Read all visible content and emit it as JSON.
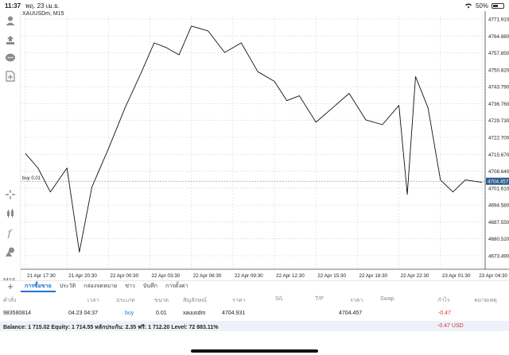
{
  "status_bar": {
    "time": "11:37",
    "date": "พฤ. 23 เม.ย.",
    "wifi_icon": "wifi-icon",
    "battery_text": "50%"
  },
  "chart": {
    "symbol_label": "XAUUSDm, M15",
    "order_line_label": "buy 0.01",
    "current_price": "4704.457",
    "price_ticks": [
      "4771.910",
      "4764.880",
      "4757.850",
      "4750.820",
      "4743.790",
      "4736.760",
      "4729.730",
      "4722.700",
      "4715.670",
      "4708.640",
      "4701.610",
      "4694.580",
      "4687.550",
      "4680.520",
      "4673.490"
    ],
    "time_ticks": [
      "21 Apr 17:30",
      "21 Apr 20:30",
      "22 Apr 00:30",
      "22 Apr 03:30",
      "22 Apr 06:30",
      "22 Apr 09:30",
      "22 Apr 12:30",
      "22 Apr 15:30",
      "22 Apr 18:30",
      "22 Apr 22:30",
      "23 Apr 01:30",
      "23 Apr 04:30"
    ]
  },
  "chart_data": {
    "type": "line",
    "title": "XAUUSDm, M15",
    "xlabel": "",
    "ylabel": "",
    "ylim": [
      4670.0,
      4774.0
    ],
    "grid": true,
    "x_ticks": [
      "21 Apr 17:30",
      "21 Apr 20:30",
      "22 Apr 00:30",
      "22 Apr 03:30",
      "22 Apr 06:30",
      "22 Apr 09:30",
      "22 Apr 12:30",
      "22 Apr 15:30",
      "22 Apr 18:30",
      "22 Apr 22:30",
      "23 Apr 01:30",
      "23 Apr 04:30"
    ],
    "series": [
      {
        "name": "XAUUSDm",
        "x": [
          0,
          0.3,
          0.6,
          1.0,
          1.3,
          1.6,
          2.0,
          2.4,
          2.8,
          3.1,
          3.4,
          3.7,
          4.0,
          4.4,
          4.8,
          5.2,
          5.6,
          6.0,
          6.3,
          6.6,
          7.0,
          7.4,
          7.8,
          8.2,
          8.6,
          9.0,
          9.2,
          9.4,
          9.7,
          10.0,
          10.3,
          10.6,
          11.0
        ],
        "values": [
          4716,
          4710,
          4700,
          4710,
          4675,
          4702,
          4718,
          4735,
          4750,
          4762,
          4760,
          4757,
          4769,
          4767,
          4758,
          4762,
          4750,
          4746,
          4738,
          4740,
          4729,
          4735,
          4741,
          4730,
          4728,
          4736,
          4699,
          4748,
          4735,
          4705,
          4700,
          4705,
          4704
        ]
      }
    ]
  },
  "tabs": [
    "การซื้อขาย",
    "ประวัติ",
    "กล่องจดหมาย",
    "ข่าว",
    "บันทึก",
    "การตั้งค่า"
  ],
  "trade_table": {
    "headers": [
      "คำสั่ง",
      "เวลา",
      "ประเภท",
      "ขนาด",
      "สัญลักษณ์",
      "ราคา",
      "S/L",
      "T/P",
      "ราคา",
      "Swap",
      "กำไร",
      "หมายเหตุ"
    ],
    "row": {
      "order": "983580814",
      "time": "04.23 04:37",
      "type": "buy",
      "size": "0.01",
      "symbol": "xauusdm",
      "open_price": "4704.931",
      "sl": "",
      "tp": "",
      "current_price": "4704.457",
      "swap": "",
      "profit": "-0.47",
      "comment": ""
    }
  },
  "balance_bar": {
    "summary": "Balance: 1 715.02 Equity: 1 714.55 หลักประกัน: 2.35 ฟรี: 1 712.20 Level: 72 883.11%",
    "profit": "-0.47",
    "currency": "USD"
  },
  "colors": {
    "accent": "#1c74d4",
    "negative": "#d9302f",
    "chart_line": "#111111",
    "price_tag": "#2f5d8a"
  }
}
